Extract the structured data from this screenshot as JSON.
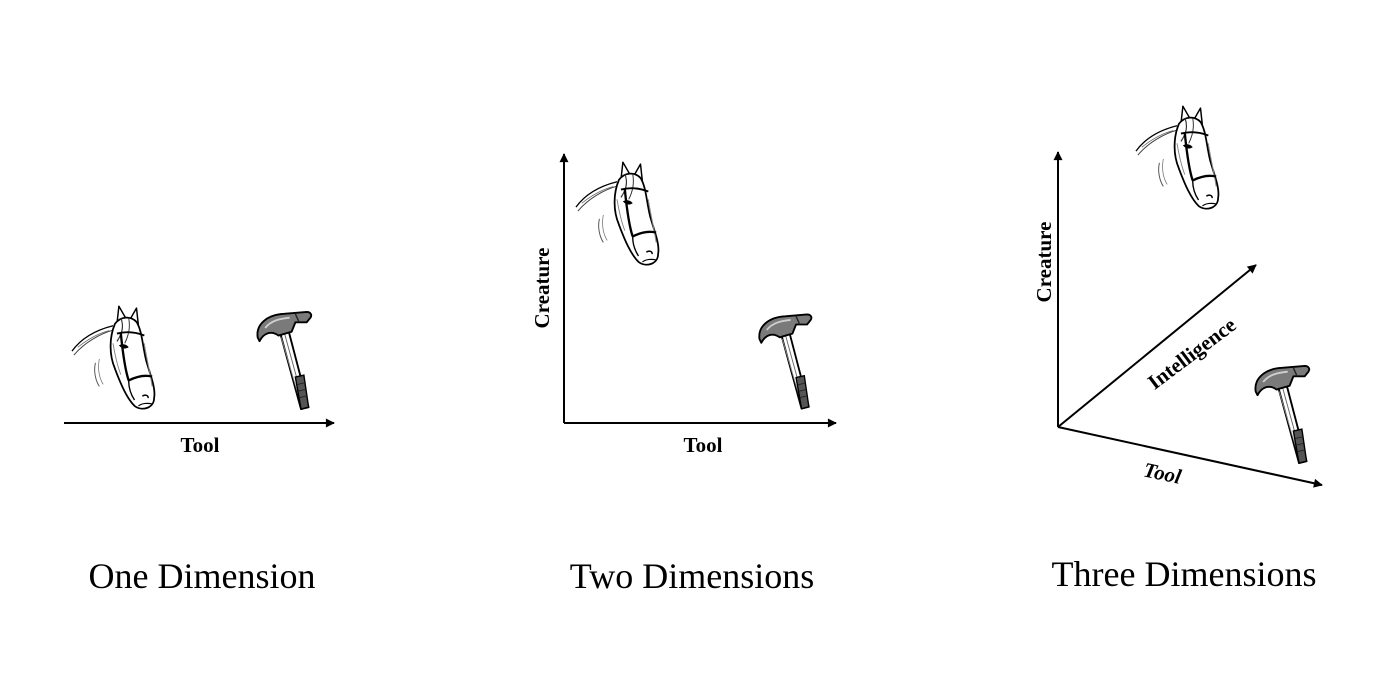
{
  "ink_color": "#000000",
  "background_color": "#ffffff",
  "panels": [
    {
      "caption": "One Dimension",
      "axes": {
        "x": "Tool"
      },
      "items": [
        "horse-head-icon",
        "hammer-icon"
      ]
    },
    {
      "caption": "Two Dimensions",
      "axes": {
        "x": "Tool",
        "y": "Creature"
      },
      "items": [
        "horse-head-icon",
        "hammer-icon"
      ]
    },
    {
      "caption": "Three Dimensions",
      "axes": {
        "x": "Tool",
        "y": "Creature",
        "z": "Intelligence"
      },
      "items": [
        "horse-head-icon",
        "hammer-icon"
      ]
    }
  ]
}
